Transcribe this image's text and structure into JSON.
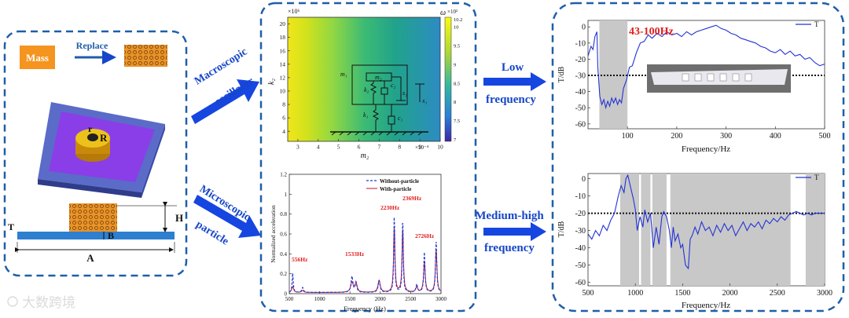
{
  "left_panel": {
    "mass_label": "Mass",
    "replace_label": "Replace",
    "r_small": "r",
    "r_big": "R",
    "dim_h": "H",
    "dim_t": "T",
    "dim_b": "B",
    "dim_a": "A"
  },
  "arrows": {
    "macro_line1": "Macroscopic",
    "macro_line2": "oscillator",
    "micro_line1": "Microscopic",
    "micro_line2": "particle",
    "low_line1": "Low",
    "low_line2": "frequency",
    "med_line1": "Medium-high",
    "med_line2": "frequency"
  },
  "heatmap": {
    "y_exp": "×10⁶",
    "x_exp": "×10⁻⁴",
    "omega_label": "ω",
    "omega_exp": "×10²",
    "ylabel": "k₂",
    "xlabel": "m₂",
    "x_ticks": [
      "3",
      "4",
      "5",
      "6",
      "7",
      "8",
      "9",
      "10"
    ],
    "y_ticks": [
      "4",
      "6",
      "8",
      "10",
      "12",
      "14",
      "16",
      "18",
      "20"
    ],
    "cbar_ticks": [
      "7",
      "7.5",
      "8",
      "8.5",
      "9",
      "9.5",
      "10",
      "10.2"
    ],
    "labels": {
      "m1": "m₁",
      "m2": "m₂",
      "k2": "k₂",
      "c2": "c₂",
      "s2": "s₂",
      "x1": "x₁",
      "k1": "k₁",
      "c1": "c₁"
    }
  },
  "spectrum": {
    "ylabel": "Normalized acceleration",
    "xlabel": "Frequency (Hz)",
    "legend": [
      "Without-particle",
      "With-particle"
    ],
    "annotations": [
      "556Hz",
      "1533Hz",
      "2230Hz",
      "2369Hz",
      "2726Hz"
    ],
    "x_ticks": [
      "500",
      "1000",
      "1500",
      "2000",
      "2500",
      "3000"
    ],
    "y_ticks": [
      "0",
      "0.2",
      "0.4",
      "0.6",
      "0.8",
      "1",
      "1.2"
    ],
    "colors": {
      "without": "#1f3bd6",
      "with": "#c8102e",
      "annotation": "#e02020"
    }
  },
  "low_chart": {
    "legend": "T",
    "band_label": "43-100Hz",
    "ylabel": "T/dB",
    "xlabel": "Frequency/Hz",
    "x_ticks": [
      "100",
      "200",
      "300",
      "400",
      "500"
    ],
    "y_ticks": [
      "0",
      "-10",
      "-20",
      "-30",
      "-40",
      "-50",
      "-60"
    ],
    "threshold": -30
  },
  "med_chart": {
    "legend": "T",
    "ylabel": "T/dB",
    "xlabel": "Frequency/Hz",
    "x_ticks": [
      "500",
      "1000",
      "1500",
      "2000",
      "2500",
      "3000"
    ],
    "y_ticks": [
      "0",
      "-10",
      "-20",
      "-30",
      "-40",
      "-50",
      "-60"
    ],
    "threshold": -20
  },
  "watermark": "大数跨境"
}
